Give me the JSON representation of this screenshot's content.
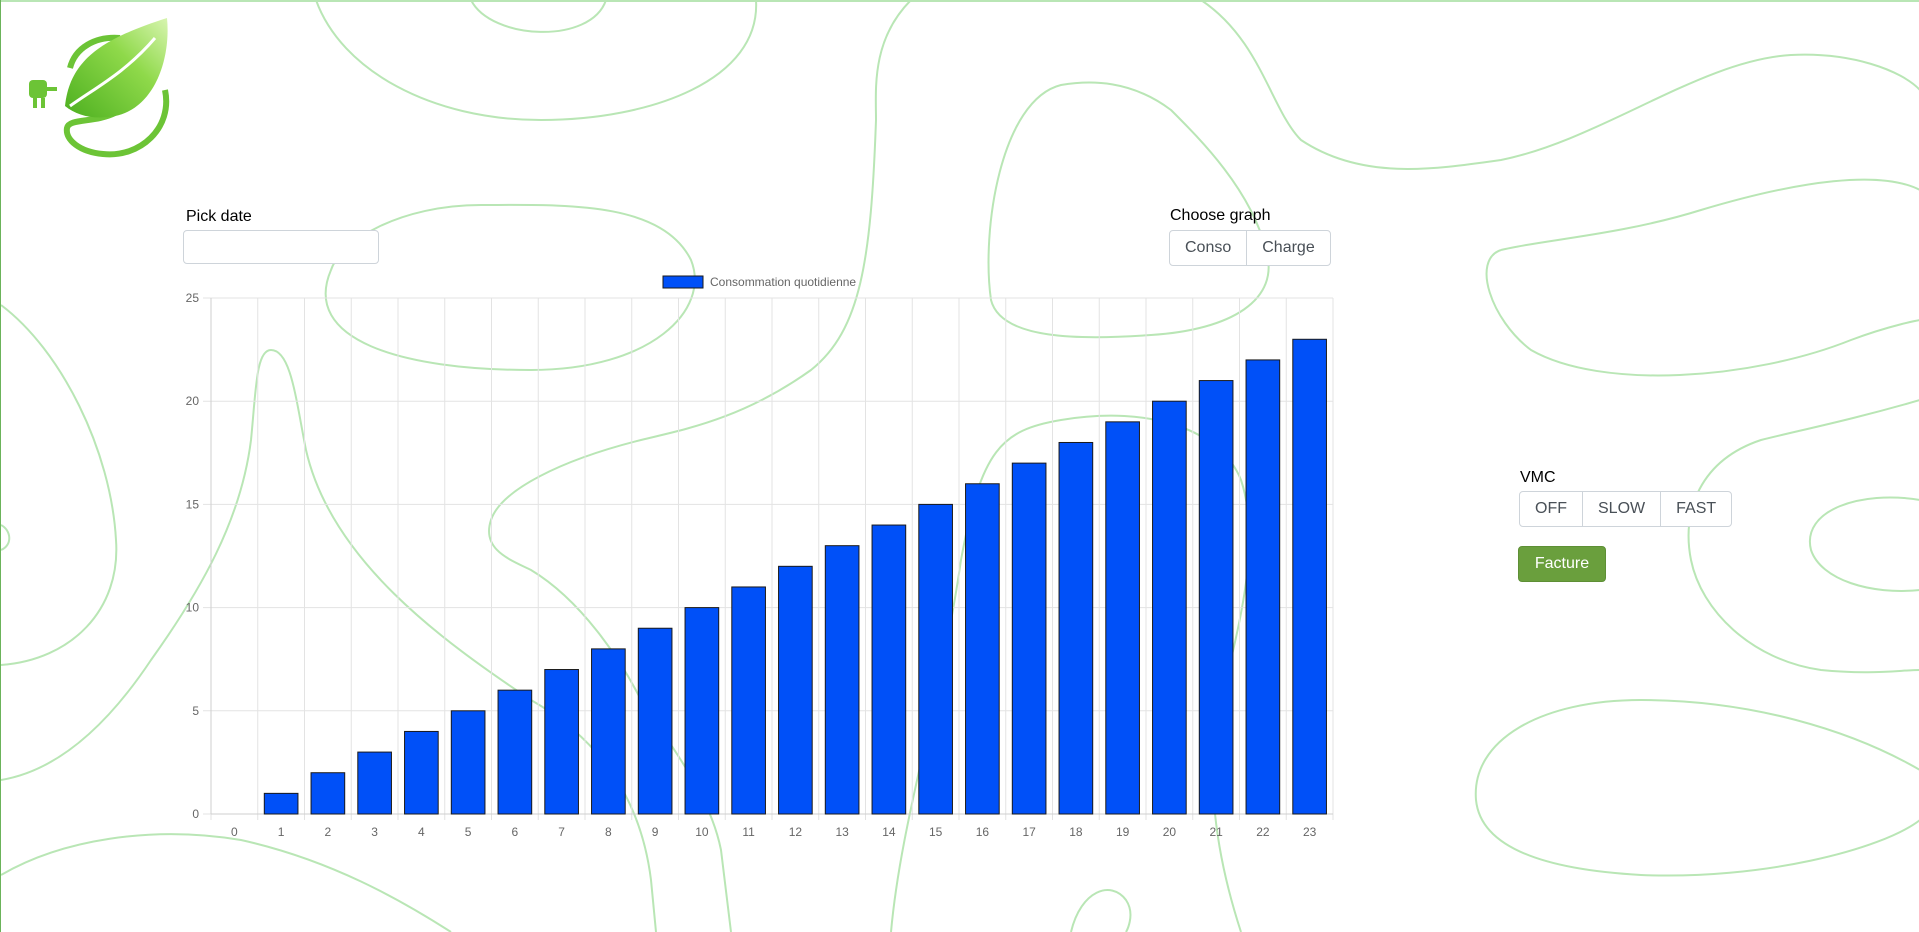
{
  "date_picker": {
    "label": "Pick date",
    "value": "",
    "placeholder": ""
  },
  "graph_selector": {
    "label": "Choose graph",
    "options": [
      "Conso",
      "Charge"
    ]
  },
  "vmc": {
    "label": "VMC",
    "options": [
      "OFF",
      "SLOW",
      "FAST"
    ]
  },
  "facture": {
    "label": "Facture"
  },
  "colors": {
    "accent_green": "#6a9f3d",
    "bar_fill": "#0050f8",
    "bar_border": "#1a1a1a",
    "decor_line": "#b9e6b5",
    "logo_green": "#6cc436"
  },
  "icons": {
    "logo": "eco-leaf-plug-logo"
  },
  "chart_data": {
    "type": "bar",
    "categories": [
      "0",
      "1",
      "2",
      "3",
      "4",
      "5",
      "6",
      "7",
      "8",
      "9",
      "10",
      "11",
      "12",
      "13",
      "14",
      "15",
      "16",
      "17",
      "18",
      "19",
      "20",
      "21",
      "22",
      "23"
    ],
    "series": [
      {
        "name": "Consommation quotidienne",
        "values": [
          0,
          1,
          2,
          3,
          4,
          5,
          6,
          7,
          8,
          9,
          10,
          11,
          12,
          13,
          14,
          15,
          16,
          17,
          18,
          19,
          20,
          21,
          22,
          23
        ]
      }
    ],
    "ylim": [
      0,
      25
    ],
    "yticks": [
      0,
      5,
      10,
      15,
      20,
      25
    ],
    "grid": true,
    "legend": "top-center"
  }
}
